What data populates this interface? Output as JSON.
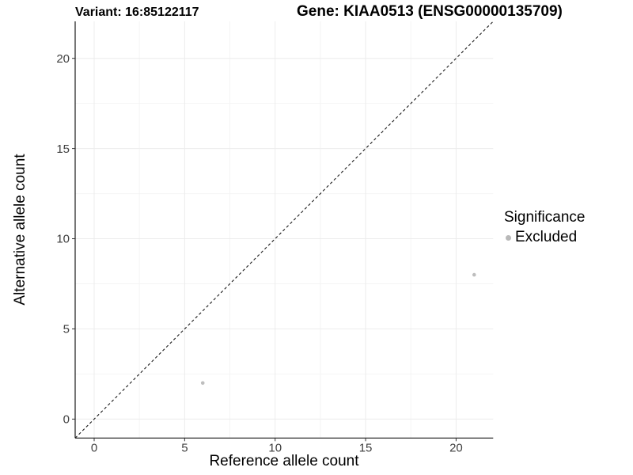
{
  "chart_data": {
    "type": "scatter",
    "title_left": "Variant: 16:85122117",
    "title_right": "Gene: KIAA0513 (ENSG00000135709)",
    "xlabel": "Reference allele count",
    "ylabel": "Alternative allele count",
    "xlim": [
      -1.05,
      22.05
    ],
    "ylim": [
      -1.05,
      22.05
    ],
    "xticks": [
      0,
      5,
      10,
      15,
      20
    ],
    "yticks": [
      0,
      5,
      10,
      15,
      20
    ],
    "x_minor_ticks": [
      2.5,
      7.5,
      12.5,
      17.5
    ],
    "y_minor_ticks": [
      2.5,
      7.5,
      12.5,
      17.5
    ],
    "grid": "major and minor, very light gray, white background",
    "legend_position": "right",
    "legend": {
      "title": "Significance",
      "entries": [
        {
          "label": "Excluded",
          "color": "#b9b9b9"
        }
      ]
    },
    "reference_line": {
      "kind": "identity y=x",
      "style": "dashed",
      "color": "#1a1a1a"
    },
    "series": [
      {
        "name": "Excluded",
        "color": "#bebebe",
        "points": [
          {
            "x": 6,
            "y": 2
          },
          {
            "x": 21,
            "y": 8
          }
        ]
      }
    ],
    "colors": {
      "background": "#ffffff",
      "grid_major": "#ececec",
      "grid_minor": "#f4f4f4",
      "axis_line": "#1a1a1a",
      "tick_mark": "#333333",
      "tick_label": "#404040",
      "title": "#000000"
    }
  }
}
